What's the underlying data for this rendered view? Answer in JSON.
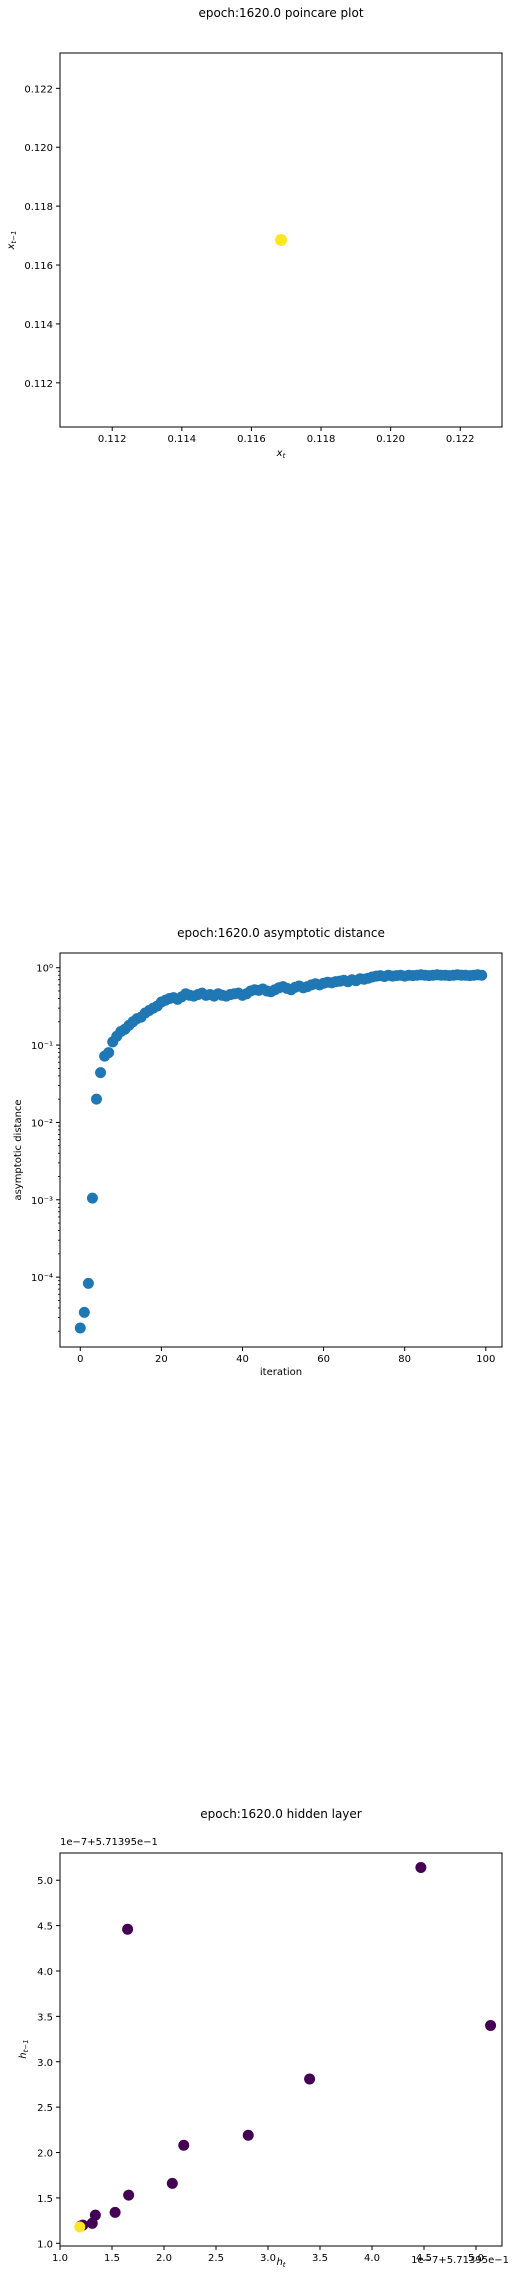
{
  "chart_data": [
    {
      "type": "scatter",
      "title": "epoch:1620.0 poincare plot",
      "xlabel": "x_t",
      "ylabel": "x_{t-1}",
      "xlim": [
        0.1105,
        0.1232
      ],
      "ylim": [
        0.1105,
        0.1232
      ],
      "xticks": [
        0.112,
        0.114,
        0.116,
        0.118,
        0.12,
        0.122
      ],
      "xtick_labels": [
        "0.112",
        "0.114",
        "0.116",
        "0.118",
        "0.120",
        "0.122"
      ],
      "yticks": [
        0.112,
        0.114,
        0.116,
        0.118,
        0.12,
        0.122
      ],
      "ytick_labels": [
        "0.112",
        "0.114",
        "0.116",
        "0.118",
        "0.120",
        "0.122"
      ],
      "grid": false,
      "color": "#fde725",
      "points": [
        [
          0.11685,
          0.11685
        ]
      ]
    },
    {
      "type": "scatter",
      "title": "epoch:1620.0 asymptotic distance",
      "xlabel": "iteration",
      "ylabel": "asymptotic distance",
      "yscale": "log",
      "xlim": [
        -5,
        104
      ],
      "ylim": [
        1.25e-05,
        1.55
      ],
      "xticks": [
        0,
        20,
        40,
        60,
        80,
        100
      ],
      "xtick_labels": [
        "0",
        "20",
        "40",
        "60",
        "80",
        "100"
      ],
      "yticks": [
        0.0001,
        0.001,
        0.01,
        0.1,
        1
      ],
      "ytick_labels": [
        "10⁻⁴",
        "10⁻³",
        "10⁻²",
        "10⁻¹",
        "10⁰"
      ],
      "grid": false,
      "color": "#1f77b4",
      "x": [
        0,
        1,
        2,
        3,
        4,
        5,
        6,
        7,
        8,
        9,
        10,
        11,
        12,
        13,
        14,
        15,
        16,
        17,
        18,
        19,
        20,
        21,
        22,
        23,
        24,
        25,
        26,
        27,
        28,
        29,
        30,
        31,
        32,
        33,
        34,
        35,
        36,
        37,
        38,
        39,
        40,
        41,
        42,
        43,
        44,
        45,
        46,
        47,
        48,
        49,
        50,
        51,
        52,
        53,
        54,
        55,
        56,
        57,
        58,
        59,
        60,
        61,
        62,
        63,
        64,
        65,
        66,
        67,
        68,
        69,
        70,
        71,
        72,
        73,
        74,
        75,
        76,
        77,
        78,
        79,
        80,
        81,
        82,
        83,
        84,
        85,
        86,
        87,
        88,
        89,
        90,
        91,
        92,
        93,
        94,
        95,
        96,
        97,
        98,
        99
      ],
      "y": [
        2.2e-05,
        3.5e-05,
        8.3e-05,
        0.00105,
        0.02,
        0.044,
        0.072,
        0.08,
        0.11,
        0.13,
        0.15,
        0.16,
        0.18,
        0.2,
        0.22,
        0.23,
        0.26,
        0.28,
        0.3,
        0.32,
        0.36,
        0.38,
        0.4,
        0.41,
        0.39,
        0.42,
        0.46,
        0.44,
        0.43,
        0.45,
        0.47,
        0.44,
        0.45,
        0.43,
        0.46,
        0.44,
        0.43,
        0.45,
        0.46,
        0.47,
        0.44,
        0.46,
        0.5,
        0.52,
        0.51,
        0.53,
        0.5,
        0.49,
        0.52,
        0.55,
        0.57,
        0.54,
        0.52,
        0.56,
        0.58,
        0.55,
        0.57,
        0.6,
        0.62,
        0.6,
        0.63,
        0.65,
        0.64,
        0.66,
        0.67,
        0.69,
        0.66,
        0.7,
        0.68,
        0.72,
        0.71,
        0.73,
        0.76,
        0.78,
        0.79,
        0.77,
        0.8,
        0.78,
        0.79,
        0.8,
        0.78,
        0.8,
        0.79,
        0.8,
        0.81,
        0.8,
        0.79,
        0.8,
        0.81,
        0.8,
        0.8,
        0.79,
        0.8,
        0.81,
        0.8,
        0.8,
        0.79,
        0.8,
        0.81,
        0.8
      ]
    },
    {
      "type": "scatter",
      "title": "epoch:1620.0 hidden layer",
      "xlabel": "h_t",
      "ylabel": "h_{t-1}",
      "offset_label_x": "1e−7+5.71395e−1",
      "offset_label_y": "1e−7+5.71395e−1",
      "xlim": [
        1.0,
        5.25
      ],
      "ylim": [
        0.97,
        5.3
      ],
      "xticks": [
        1.0,
        1.5,
        2.0,
        2.5,
        3.0,
        3.5,
        4.0,
        4.5,
        5.0
      ],
      "xtick_labels": [
        "1.0",
        "1.5",
        "2.0",
        "2.5",
        "3.0",
        "3.5",
        "4.0",
        "4.5",
        "5.0"
      ],
      "yticks": [
        1.0,
        1.5,
        2.0,
        2.5,
        3.0,
        3.5,
        4.0,
        4.5,
        5.0
      ],
      "ytick_labels": [
        "1.0",
        "1.5",
        "2.0",
        "2.5",
        "3.0",
        "3.5",
        "4.0",
        "4.5",
        "5.0"
      ],
      "grid": false,
      "points": [
        {
          "x": 4.47,
          "y": 5.14,
          "color": "#440154"
        },
        {
          "x": 5.14,
          "y": 3.4,
          "color": "#440154"
        },
        {
          "x": 1.65,
          "y": 4.46,
          "color": "#440154"
        },
        {
          "x": 3.4,
          "y": 2.81,
          "color": "#440154"
        },
        {
          "x": 2.81,
          "y": 2.19,
          "color": "#440154"
        },
        {
          "x": 2.19,
          "y": 2.08,
          "color": "#440154"
        },
        {
          "x": 2.08,
          "y": 1.66,
          "color": "#440154"
        },
        {
          "x": 1.66,
          "y": 1.53,
          "color": "#440154"
        },
        {
          "x": 1.53,
          "y": 1.34,
          "color": "#440154"
        },
        {
          "x": 1.34,
          "y": 1.31,
          "color": "#440154"
        },
        {
          "x": 1.31,
          "y": 1.22,
          "color": "#440154"
        },
        {
          "x": 1.22,
          "y": 1.2,
          "color": "#440154"
        },
        {
          "x": 1.2,
          "y": 1.19,
          "color": "#440154"
        },
        {
          "x": 1.19,
          "y": 1.18,
          "color": "#fde725"
        }
      ]
    }
  ]
}
